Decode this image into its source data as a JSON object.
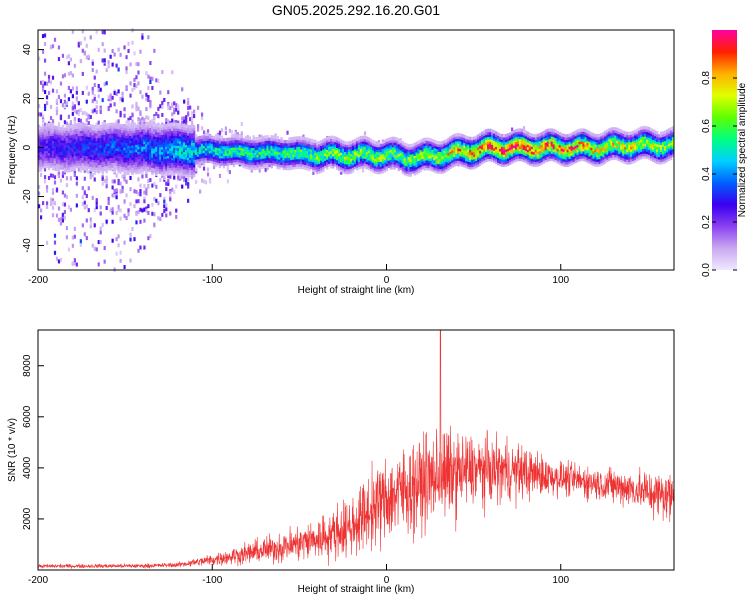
{
  "title": "GN05.2025.292.16.20.G01",
  "chart_data": [
    {
      "type": "heatmap",
      "xlabel": "Height of straight line (km)",
      "ylabel": "Frequency (Hz)",
      "xlim": [
        -200,
        165
      ],
      "ylim": [
        -50,
        48
      ],
      "xticks": [
        -200,
        -100,
        0,
        100
      ],
      "yticks": [
        -40,
        -20,
        0,
        20,
        40
      ],
      "colorbar": {
        "label": "Normalized spectral amplitude",
        "range": [
          0.0,
          1.0
        ],
        "ticks": [
          0.0,
          0.2,
          0.4,
          0.6,
          0.8
        ],
        "colors": [
          "#f0e8ff",
          "#c9a8f0",
          "#8a40f0",
          "#3a00f0",
          "#0060ff",
          "#00d0ff",
          "#00ff80",
          "#60ff00",
          "#e0ff00",
          "#ffb000",
          "#ff2000",
          "#ff00a0"
        ]
      },
      "ridge": {
        "x": [
          -200,
          -150,
          -120,
          -100,
          -80,
          -60,
          -40,
          -20,
          0,
          10,
          20,
          40,
          60,
          80,
          100,
          120,
          140,
          165
        ],
        "frequency": [
          0,
          0,
          -1,
          -1,
          -2,
          -2,
          -3,
          -3,
          -3,
          -4,
          -4,
          -2,
          0,
          0,
          0,
          0,
          1,
          1
        ],
        "amplitude": [
          0.25,
          0.35,
          0.45,
          0.5,
          0.55,
          0.55,
          0.6,
          0.65,
          0.65,
          0.6,
          0.65,
          0.75,
          0.9,
          0.85,
          0.85,
          0.75,
          0.7,
          0.6
        ]
      },
      "noise_spread": {
        "x": [
          -200,
          -150,
          -120,
          -100,
          -60,
          0,
          165
        ],
        "frequency_halfwidth": [
          48,
          45,
          20,
          10,
          6,
          5,
          4
        ]
      }
    },
    {
      "type": "line",
      "xlabel": "Height of straight line (km)",
      "ylabel": "SNR (10 * v/v)",
      "xlim": [
        -200,
        165
      ],
      "ylim": [
        0,
        9400
      ],
      "xticks": [
        -200,
        -100,
        0,
        100
      ],
      "yticks": [
        2000,
        4000,
        6000,
        8000
      ],
      "color": "#ee3333",
      "envelope": {
        "x": [
          -200,
          -140,
          -120,
          -100,
          -80,
          -60,
          -40,
          -20,
          -10,
          0,
          10,
          20,
          30,
          40,
          50,
          60,
          70,
          80,
          90,
          100,
          110,
          120,
          140,
          160,
          165
        ],
        "mean": [
          150,
          160,
          200,
          400,
          650,
          900,
          1200,
          1700,
          2300,
          2800,
          3100,
          3400,
          3700,
          3800,
          3900,
          3900,
          3900,
          3800,
          3700,
          3600,
          3500,
          3400,
          3200,
          2900,
          2900
        ],
        "spread": [
          80,
          90,
          100,
          250,
          450,
          650,
          900,
          1300,
          1600,
          1800,
          1900,
          1900,
          2000,
          1800,
          1500,
          1400,
          1300,
          1100,
          900,
          700,
          700,
          700,
          800,
          1100,
          1200
        ]
      },
      "peak": {
        "x": 31,
        "y": 9400
      }
    }
  ]
}
